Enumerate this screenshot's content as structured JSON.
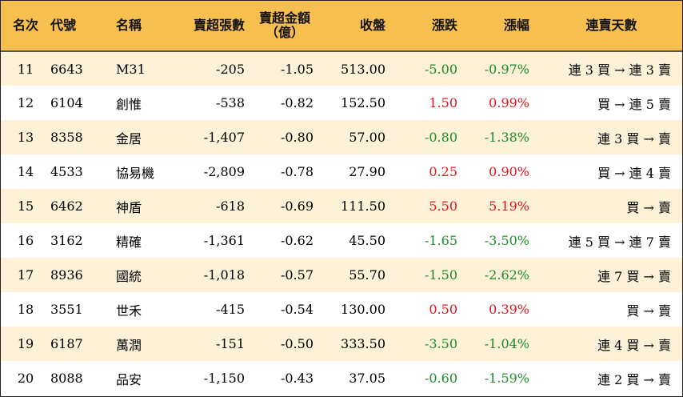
{
  "headers": {
    "rank": "名次",
    "code": "代號",
    "name": "名稱",
    "net_sell_shares": "賣超張數",
    "net_sell_amount_line1": "賣超金額",
    "net_sell_amount_line2": "（億）",
    "close": "收盤",
    "change": "漲跌",
    "change_pct": "漲幅",
    "streak": "連賣天數"
  },
  "colors": {
    "header_bg": "#f7bf4f",
    "odd_row_bg": "#fdf1d7",
    "up": "#e0161d",
    "down": "#1d8c2a"
  },
  "rows": [
    {
      "rank": "11",
      "code": "6643",
      "name": "M31",
      "shares": "-205",
      "amount": "-1.05",
      "close": "513.00",
      "change": "-5.00",
      "pct": "-0.97%",
      "streak": "連 3 買 → 連 3 賣"
    },
    {
      "rank": "12",
      "code": "6104",
      "name": "創惟",
      "shares": "-538",
      "amount": "-0.82",
      "close": "152.50",
      "change": "1.50",
      "pct": "0.99%",
      "streak": "買 → 連 5 賣"
    },
    {
      "rank": "13",
      "code": "8358",
      "name": "金居",
      "shares": "-1,407",
      "amount": "-0.80",
      "close": "57.00",
      "change": "-0.80",
      "pct": "-1.38%",
      "streak": "連 3 買 → 賣"
    },
    {
      "rank": "14",
      "code": "4533",
      "name": "協易機",
      "shares": "-2,809",
      "amount": "-0.78",
      "close": "27.90",
      "change": "0.25",
      "pct": "0.90%",
      "streak": "買 → 連 4 賣"
    },
    {
      "rank": "15",
      "code": "6462",
      "name": "神盾",
      "shares": "-618",
      "amount": "-0.69",
      "close": "111.50",
      "change": "5.50",
      "pct": "5.19%",
      "streak": "買 → 賣"
    },
    {
      "rank": "16",
      "code": "3162",
      "name": "精確",
      "shares": "-1,361",
      "amount": "-0.62",
      "close": "45.50",
      "change": "-1.65",
      "pct": "-3.50%",
      "streak": "連 5 買 → 連 7 賣"
    },
    {
      "rank": "17",
      "code": "8936",
      "name": "國統",
      "shares": "-1,018",
      "amount": "-0.57",
      "close": "55.70",
      "change": "-1.50",
      "pct": "-2.62%",
      "streak": "連 7 買 → 賣"
    },
    {
      "rank": "18",
      "code": "3551",
      "name": "世禾",
      "shares": "-415",
      "amount": "-0.54",
      "close": "130.00",
      "change": "0.50",
      "pct": "0.39%",
      "streak": "買 → 賣"
    },
    {
      "rank": "19",
      "code": "6187",
      "name": "萬潤",
      "shares": "-151",
      "amount": "-0.50",
      "close": "333.50",
      "change": "-3.50",
      "pct": "-1.04%",
      "streak": "連 4 買 → 賣"
    },
    {
      "rank": "20",
      "code": "8088",
      "name": "品安",
      "shares": "-1,150",
      "amount": "-0.43",
      "close": "37.05",
      "change": "-0.60",
      "pct": "-1.59%",
      "streak": "連 2 買 → 賣"
    }
  ]
}
